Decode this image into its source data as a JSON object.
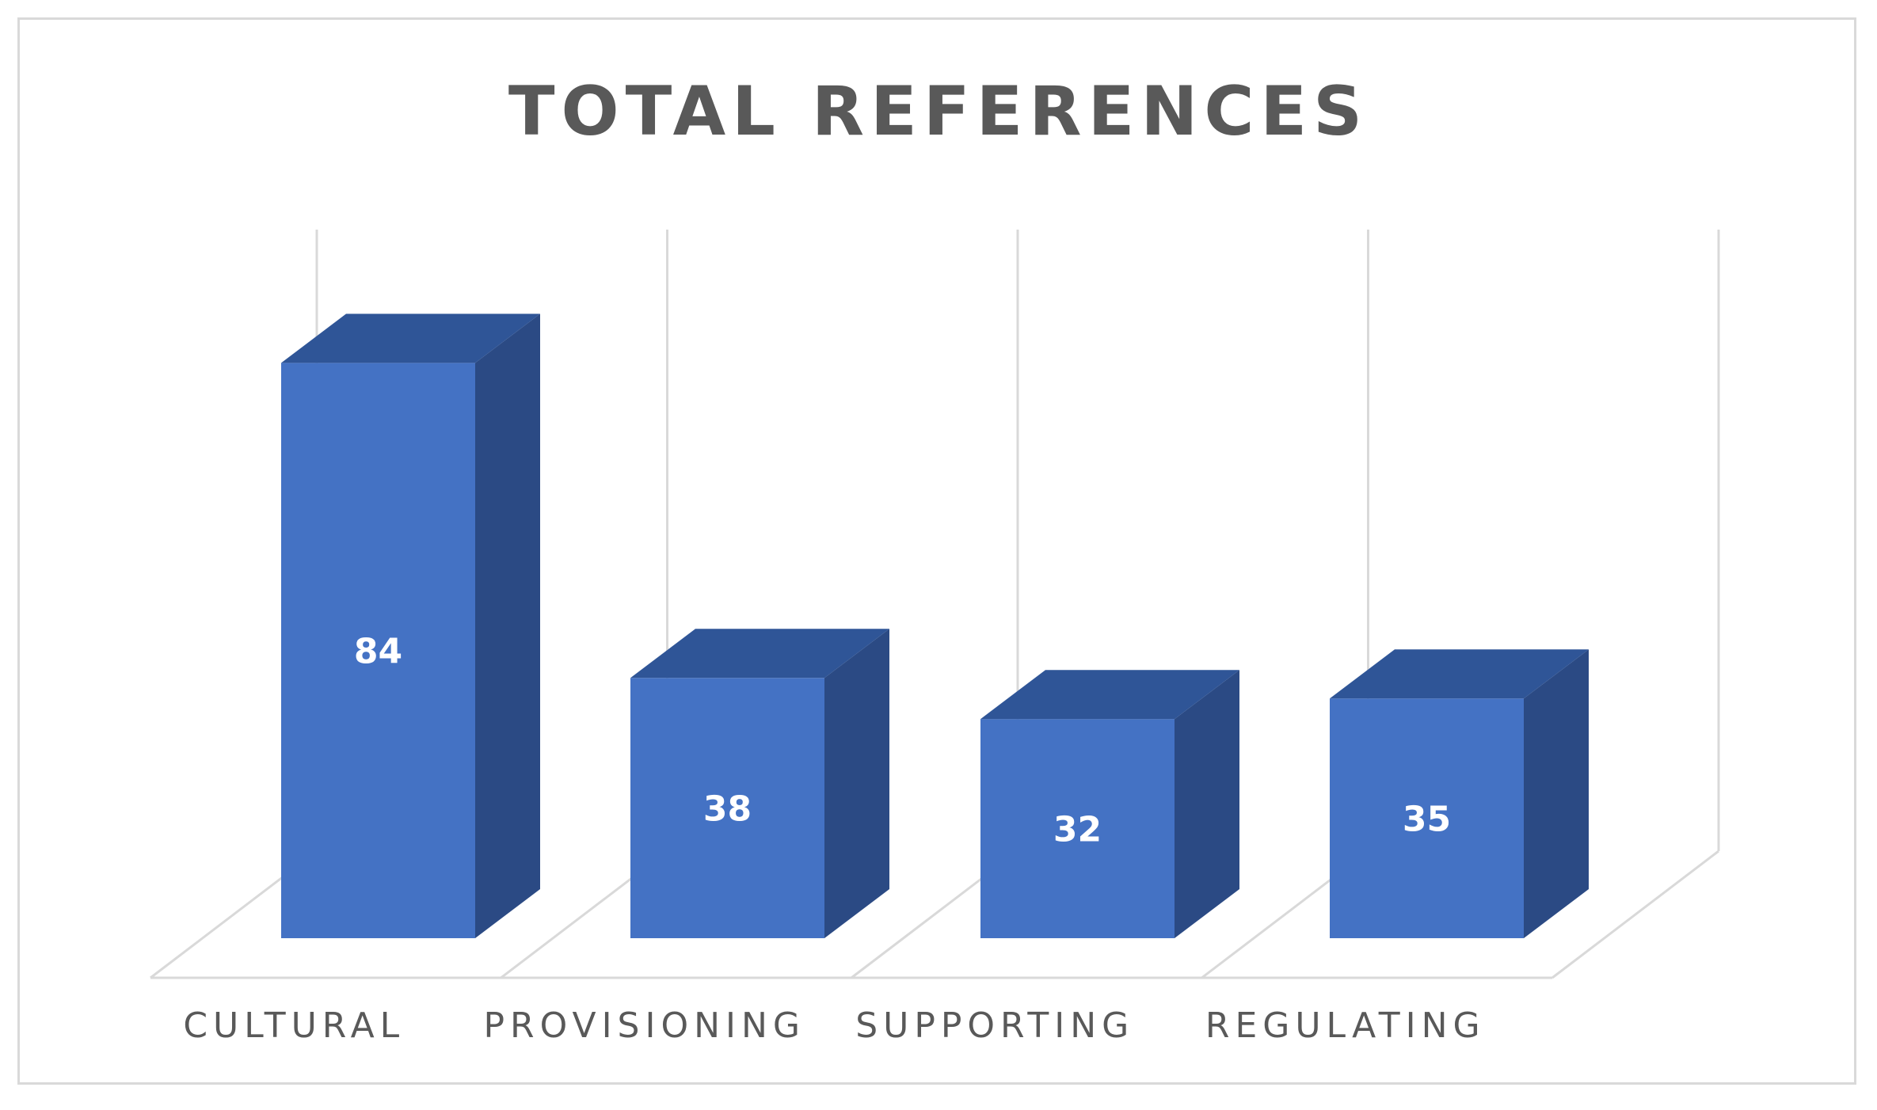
{
  "chart_data": {
    "type": "bar",
    "style": "3d-column",
    "title": "TOTAL REFERENCES",
    "categories": [
      "CULTURAL",
      "PROVISIONING",
      "SUPPORTING",
      "REGULATING"
    ],
    "values": [
      84,
      38,
      32,
      35
    ],
    "ylim": [
      0,
      100
    ],
    "grid": true,
    "legend": "none",
    "data_labels": "inside-bar",
    "colors": {
      "front": "#4472C4",
      "side": "#2B4A84",
      "top": "#2F5597",
      "grid": "#d9d9d9",
      "text": "#595959",
      "label": "#ffffff"
    }
  }
}
